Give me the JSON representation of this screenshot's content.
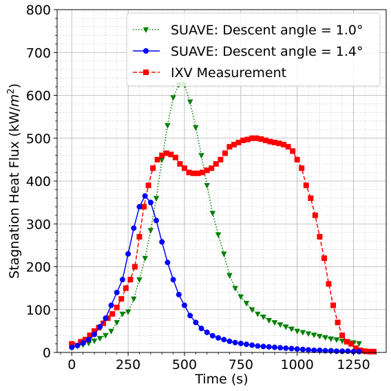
{
  "chart_data": {
    "type": "line",
    "title": "",
    "xlabel": "Time (s)",
    "ylabel_main": "Stagnation Heat Flux (kW/",
    "ylabel_unit_base": "m",
    "ylabel_unit_exp": "2",
    "ylabel_tail": ")",
    "xlim": [
      -65,
      1395
    ],
    "ylim": [
      0,
      800
    ],
    "xticks": [
      0,
      250,
      500,
      750,
      1000,
      1250
    ],
    "yticks": [
      0,
      100,
      200,
      300,
      400,
      500,
      600,
      700,
      800
    ],
    "grid": true,
    "minor_grid": true,
    "legend_position": "upper-right",
    "series": [
      {
        "name": "SUAVE: Descent angle = 1.0°",
        "color": "#008000",
        "linestyle": "dotted",
        "marker": "triangle-down",
        "x": [
          0,
          25,
          50,
          75,
          100,
          125,
          150,
          175,
          200,
          225,
          250,
          275,
          300,
          325,
          350,
          375,
          400,
          425,
          450,
          475,
          500,
          525,
          550,
          575,
          600,
          625,
          650,
          675,
          700,
          725,
          750,
          775,
          800,
          825,
          850,
          875,
          900,
          925,
          950,
          975,
          1000,
          1025,
          1050,
          1075,
          1100,
          1125,
          1150,
          1175,
          1200,
          1225,
          1250,
          1275
        ],
        "y": [
          12,
          15,
          18,
          22,
          27,
          33,
          40,
          50,
          70,
          90,
          95,
          125,
          170,
          220,
          285,
          360,
          450,
          530,
          595,
          625,
          625,
          585,
          525,
          460,
          390,
          325,
          275,
          230,
          180,
          150,
          130,
          115,
          100,
          90,
          83,
          75,
          70,
          65,
          60,
          55,
          50,
          47,
          44,
          41,
          38,
          35,
          32,
          30,
          27,
          25,
          23,
          21
        ]
      },
      {
        "name": "SUAVE: Descent angle = 1.4°",
        "color": "#0000ff",
        "linestyle": "solid",
        "marker": "circle",
        "x": [
          0,
          25,
          50,
          75,
          100,
          125,
          150,
          175,
          200,
          225,
          250,
          275,
          300,
          325,
          350,
          375,
          400,
          425,
          450,
          475,
          500,
          525,
          550,
          575,
          600,
          625,
          650,
          675,
          700,
          725,
          750,
          775,
          800,
          825,
          850,
          875,
          900,
          925,
          950,
          975,
          1000,
          1025,
          1050,
          1075,
          1100,
          1125,
          1150,
          1175,
          1200,
          1225,
          1250,
          1275
        ],
        "y": [
          12,
          16,
          22,
          30,
          42,
          60,
          80,
          110,
          140,
          170,
          230,
          290,
          340,
          365,
          350,
          308,
          258,
          210,
          170,
          135,
          110,
          86,
          70,
          56,
          47,
          39,
          34,
          30,
          26,
          23,
          21,
          19,
          17,
          15,
          14,
          13,
          12,
          11,
          10,
          9,
          8,
          7,
          6,
          5,
          5,
          4,
          4,
          3,
          3,
          3,
          2,
          2
        ]
      },
      {
        "name": "IXV Measurement",
        "color": "#ff0000",
        "linestyle": "dashed",
        "marker": "square",
        "x": [
          0,
          40,
          60,
          80,
          100,
          120,
          140,
          160,
          180,
          200,
          220,
          240,
          260,
          280,
          300,
          320,
          340,
          360,
          380,
          400,
          420,
          440,
          460,
          480,
          500,
          520,
          540,
          560,
          580,
          600,
          620,
          640,
          660,
          680,
          700,
          720,
          740,
          760,
          780,
          800,
          820,
          840,
          860,
          880,
          900,
          920,
          940,
          960,
          980,
          1000,
          1020,
          1040,
          1060,
          1080,
          1100,
          1120,
          1140,
          1160,
          1180,
          1200,
          1220,
          1240,
          1260,
          1280,
          1300,
          1320,
          1340
        ],
        "y": [
          20,
          25,
          30,
          40,
          50,
          58,
          68,
          80,
          90,
          105,
          125,
          150,
          170,
          200,
          270,
          340,
          390,
          430,
          450,
          460,
          465,
          462,
          455,
          440,
          430,
          420,
          418,
          418,
          420,
          425,
          430,
          440,
          450,
          465,
          480,
          485,
          490,
          495,
          497,
          500,
          500,
          498,
          495,
          492,
          490,
          488,
          485,
          480,
          470,
          450,
          430,
          390,
          360,
          320,
          270,
          220,
          160,
          110,
          70,
          40,
          25,
          20,
          10,
          5,
          3,
          2,
          2
        ]
      }
    ]
  }
}
